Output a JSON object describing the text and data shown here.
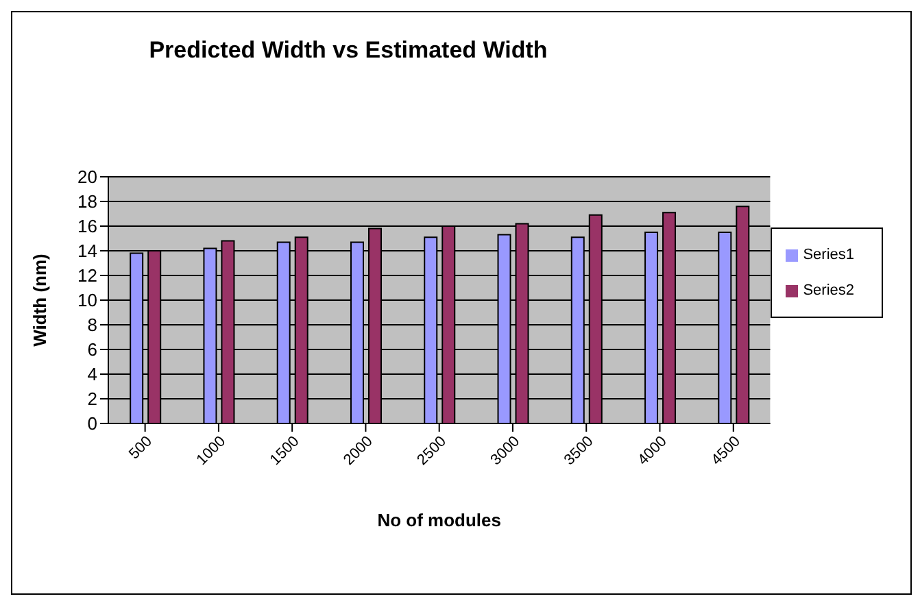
{
  "chart_data": {
    "type": "bar",
    "title": "Predicted Width vs Estimated Width",
    "xlabel": "No of modules",
    "ylabel": "Width (nm)",
    "categories": [
      "500",
      "1000",
      "1500",
      "2000",
      "2500",
      "3000",
      "3500",
      "4000",
      "4500"
    ],
    "series": [
      {
        "name": "Series1",
        "color": "#9999ff",
        "values": [
          13.8,
          14.2,
          14.7,
          14.7,
          15.1,
          15.3,
          15.1,
          15.5,
          15.5
        ]
      },
      {
        "name": "Series2",
        "color": "#993366",
        "values": [
          14.0,
          14.8,
          15.1,
          15.8,
          16.0,
          16.2,
          16.9,
          17.1,
          17.6
        ]
      }
    ],
    "ylim": [
      0,
      20
    ],
    "yticks": [
      0,
      2,
      4,
      6,
      8,
      10,
      12,
      14,
      16,
      18,
      20
    ],
    "grid": "y",
    "legend": "right"
  }
}
